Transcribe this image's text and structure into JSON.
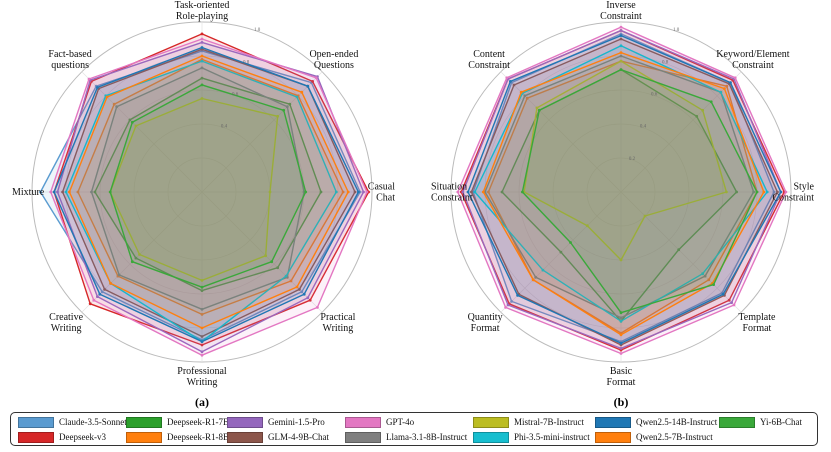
{
  "figure": {
    "label_a": "(a)",
    "label_b": "(b)"
  },
  "legend": {
    "entries": [
      {
        "name": "Claude-3.5-Sonnet",
        "color": "#5a9bd0"
      },
      {
        "name": "Deepseek-R1-7B",
        "color": "#2ca02c"
      },
      {
        "name": "Gemini-1.5-Pro",
        "color": "#9467bd"
      },
      {
        "name": "GPT-4o",
        "color": "#e377c2"
      },
      {
        "name": "Mistral-7B-Instruct",
        "color": "#bcbd22"
      },
      {
        "name": "Qwen2.5-14B-Instruct",
        "color": "#1f77b4"
      },
      {
        "name": "Yi-6B-Chat",
        "color": "#3aa83a"
      },
      {
        "name": "Deepseek-v3",
        "color": "#d62728"
      },
      {
        "name": "Deepseek-R1-8B",
        "color": "#ff7f0e"
      },
      {
        "name": "GLM-4-9B-Chat",
        "color": "#8c564b"
      },
      {
        "name": "Llama-3.1-8B-Instruct",
        "color": "#7f7f7f"
      },
      {
        "name": "Phi-3.5-mini-instruct",
        "color": "#17becf"
      },
      {
        "name": "Qwen2.5-7B-Instruct",
        "color": "#ff7f0e"
      }
    ]
  },
  "chart_data": [
    {
      "type": "radar",
      "panel": "(a)",
      "axes": [
        "Task-oriented\nRole-playing",
        "Open-ended\nQuestions",
        "Casual\nChat",
        "Practical\nWriting",
        "Professional\nWriting",
        "Creative\nWriting",
        "Mixture",
        "Fact-based\nquestions"
      ],
      "rlim": [
        0,
        1.0
      ],
      "rticks": [
        "0.4",
        "0.6",
        "0.8",
        "1.0"
      ],
      "series": [
        {
          "name": "Claude-3.5-Sonnet",
          "values": [
            0.83,
            0.91,
            0.93,
            0.83,
            0.87,
            0.83,
            0.95,
            0.88
          ]
        },
        {
          "name": "Deepseek-v3",
          "values": [
            0.93,
            0.92,
            0.98,
            0.9,
            0.9,
            0.93,
            0.87,
            0.92
          ]
        },
        {
          "name": "Deepseek-R1-7B",
          "values": [
            0.67,
            0.73,
            0.7,
            0.63,
            0.58,
            0.55,
            0.63,
            0.6
          ]
        },
        {
          "name": "Deepseek-R1-8B",
          "values": [
            0.78,
            0.8,
            0.83,
            0.74,
            0.72,
            0.7,
            0.73,
            0.73
          ]
        },
        {
          "name": "Gemini-1.5-Pro",
          "values": [
            0.88,
            0.96,
            0.95,
            0.88,
            0.94,
            0.87,
            0.85,
            0.93
          ]
        },
        {
          "name": "GLM-4-9B-Chat",
          "values": [
            0.84,
            0.88,
            0.9,
            0.81,
            0.85,
            0.81,
            0.82,
            0.86
          ]
        },
        {
          "name": "GPT-4o",
          "values": [
            0.9,
            0.95,
            0.97,
            0.96,
            0.96,
            0.9,
            0.89,
            0.94
          ]
        },
        {
          "name": "Llama-3.1-8B-Instruct",
          "values": [
            0.73,
            0.71,
            0.6,
            0.71,
            0.69,
            0.69,
            0.65,
            0.71
          ]
        },
        {
          "name": "Mistral-7B-Instruct",
          "values": [
            0.55,
            0.63,
            0.4,
            0.53,
            0.52,
            0.52,
            0.54,
            0.55
          ]
        },
        {
          "name": "Phi-3.5-mini-instruct",
          "values": [
            0.77,
            0.79,
            0.79,
            0.7,
            0.88,
            0.76,
            0.8,
            0.8
          ]
        },
        {
          "name": "Qwen2.5-14B-Instruct",
          "values": [
            0.85,
            0.88,
            0.92,
            0.85,
            0.88,
            0.85,
            0.87,
            0.87
          ]
        },
        {
          "name": "Qwen2.5-7B-Instruct",
          "values": [
            0.8,
            0.83,
            0.86,
            0.79,
            0.8,
            0.76,
            0.78,
            0.79
          ]
        },
        {
          "name": "Yi-6B-Chat",
          "values": [
            0.63,
            0.68,
            0.61,
            0.58,
            0.56,
            0.58,
            0.54,
            0.58
          ]
        }
      ]
    },
    {
      "type": "radar",
      "panel": "(b)",
      "axes": [
        "Inverse\nConstraint",
        "Keyword/Element\nConstraint",
        "Style\nConstraint",
        "Template\nFormat",
        "Basic\nFormat",
        "Quantity\nFormat",
        "Situation\nConstraint",
        "Content\nConstraint"
      ],
      "rlim": [
        0,
        1.0
      ],
      "rticks": [
        "0.2",
        "0.4",
        "0.6",
        "0.8",
        "1.0"
      ],
      "series": [
        {
          "name": "Claude-3.5-Sonnet",
          "values": [
            0.93,
            0.91,
            0.9,
            0.84,
            0.88,
            0.91,
            0.87,
            0.91
          ]
        },
        {
          "name": "Deepseek-v3",
          "values": [
            0.95,
            0.93,
            0.96,
            0.9,
            0.93,
            0.93,
            0.94,
            0.94
          ]
        },
        {
          "name": "Deepseek-R1-7B",
          "values": [
            0.72,
            0.63,
            0.68,
            0.48,
            0.76,
            0.5,
            0.7,
            0.68
          ]
        },
        {
          "name": "Deepseek-R1-8B",
          "values": [
            0.77,
            0.88,
            0.8,
            0.73,
            0.83,
            0.73,
            0.78,
            0.78
          ]
        },
        {
          "name": "Gemini-1.5-Pro",
          "values": [
            0.95,
            0.94,
            0.94,
            0.92,
            0.92,
            0.94,
            0.93,
            0.94
          ]
        },
        {
          "name": "GLM-4-9B-Chat",
          "values": [
            0.9,
            0.9,
            0.92,
            0.86,
            0.9,
            0.85,
            0.88,
            0.89
          ]
        },
        {
          "name": "GPT-4o",
          "values": [
            0.97,
            0.95,
            0.97,
            0.94,
            0.95,
            0.96,
            0.96,
            0.95
          ]
        },
        {
          "name": "Llama-3.1-8B-Instruct",
          "values": [
            0.8,
            0.83,
            0.78,
            0.7,
            0.74,
            0.71,
            0.8,
            0.8
          ]
        },
        {
          "name": "Mistral-7B-Instruct",
          "values": [
            0.77,
            0.68,
            0.62,
            0.2,
            0.4,
            0.28,
            0.57,
            0.7
          ]
        },
        {
          "name": "Phi-3.5-mini-instruct",
          "values": [
            0.86,
            0.83,
            0.86,
            0.68,
            0.76,
            0.65,
            0.86,
            0.82
          ]
        },
        {
          "name": "Qwen2.5-14B-Instruct",
          "values": [
            0.92,
            0.91,
            0.94,
            0.85,
            0.89,
            0.86,
            0.9,
            0.92
          ]
        },
        {
          "name": "Qwen2.5-7B-Instruct",
          "values": [
            0.82,
            0.86,
            0.84,
            0.76,
            0.84,
            0.73,
            0.81,
            0.83
          ]
        },
        {
          "name": "Yi-6B-Chat",
          "values": [
            0.72,
            0.75,
            0.8,
            0.77,
            0.71,
            0.42,
            0.58,
            0.68
          ]
        }
      ]
    }
  ]
}
